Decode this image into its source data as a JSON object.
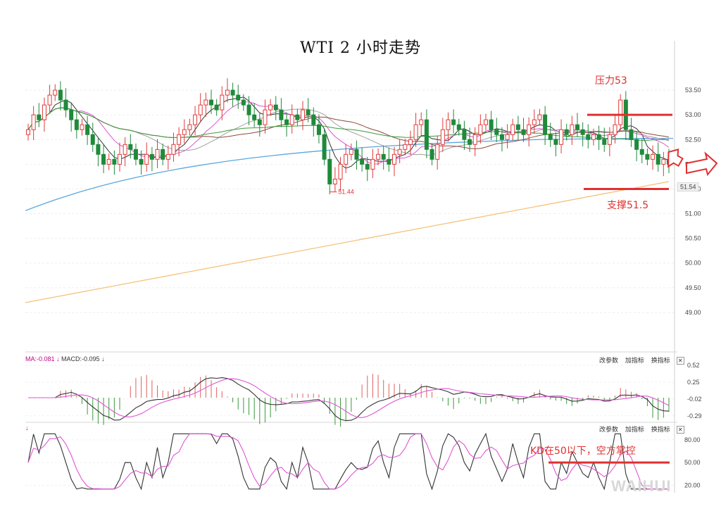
{
  "chart_data": {
    "type": "candlestick",
    "title": "WTI 2 小时走势",
    "price_axis": {
      "ticks": [
        53.5,
        53.0,
        52.5,
        52.0,
        51.5,
        51.0,
        50.5,
        50.0,
        49.5,
        49.0
      ],
      "tick_labels": [
        "53.50",
        "53.00",
        "52.50",
        "52.00",
        "51.50",
        "51.00",
        "50.50",
        "50.00",
        "49.50",
        "49.00"
      ],
      "range": [
        48.6,
        53.9
      ]
    },
    "current_price": "51.54",
    "low_marker": {
      "label": "51.44",
      "value": 51.44
    },
    "annotations": {
      "resistance": {
        "label": "压力53",
        "value": 53.0
      },
      "support": {
        "label": "支撑51.5",
        "value": 51.5
      },
      "kd_note": {
        "label": "KD在50以下，空方掌控",
        "value": 50
      }
    },
    "candles_close": [
      52.7,
      53.0,
      52.9,
      53.2,
      53.4,
      53.5,
      53.3,
      53.1,
      52.9,
      52.7,
      52.8,
      52.6,
      52.4,
      52.2,
      52.0,
      52.1,
      52.0,
      52.2,
      52.4,
      52.3,
      52.1,
      52.0,
      52.2,
      52.1,
      52.3,
      52.1,
      52.2,
      52.4,
      52.6,
      52.7,
      52.8,
      53.0,
      53.2,
      53.3,
      53.2,
      53.1,
      53.4,
      53.5,
      53.4,
      53.3,
      53.2,
      53.0,
      52.9,
      52.8,
      53.1,
      53.2,
      53.1,
      52.9,
      52.8,
      53.0,
      52.9,
      53.1,
      53.0,
      52.8,
      52.6,
      52.1,
      51.6,
      51.7,
      52.0,
      52.2,
      52.3,
      52.1,
      52.0,
      51.9,
      52.1,
      52.2,
      52.1,
      52.0,
      52.2,
      52.3,
      52.4,
      52.5,
      52.8,
      52.9,
      52.3,
      52.1,
      52.4,
      52.7,
      52.9,
      52.8,
      52.7,
      52.5,
      52.4,
      52.6,
      52.8,
      52.9,
      52.7,
      52.6,
      52.5,
      52.6,
      52.8,
      52.7,
      52.6,
      52.8,
      52.9,
      53.0,
      52.6,
      52.5,
      52.4,
      52.7,
      52.6,
      52.8,
      52.7,
      52.6,
      52.5,
      52.6,
      52.5,
      52.4,
      52.6,
      52.8,
      53.3,
      52.7,
      52.5,
      52.3,
      52.2,
      52.1,
      52.2,
      52.0,
      52.1,
      52.0
    ],
    "macd_panel": {
      "labels": [
        "MA:-0.081 ↓",
        "MACD:-0.095 ↓"
      ],
      "ticks": [
        0.52,
        0.25,
        -0.02,
        -0.29
      ],
      "tick_labels": [
        "0.52",
        "0.25",
        "-0.02",
        "-0.29"
      ],
      "range": [
        -0.36,
        0.62
      ]
    },
    "kd_panel": {
      "labels": [
        "↓"
      ],
      "ticks": [
        80,
        50,
        20
      ],
      "tick_labels": [
        "80.00",
        "50.00",
        "20.00"
      ],
      "range": [
        12,
        92
      ]
    },
    "panel_buttons": [
      "改参数",
      "加指标",
      "换指标",
      "✕"
    ]
  },
  "watermark": "WAIHUI"
}
